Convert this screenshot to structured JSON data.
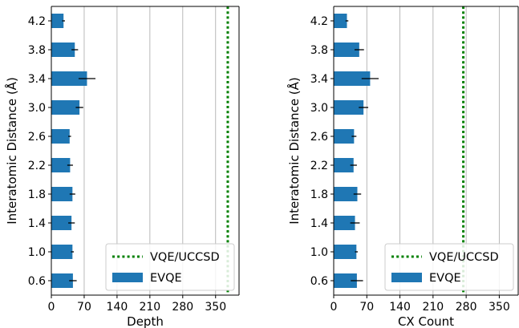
{
  "chart_data": [
    {
      "type": "bar",
      "orientation": "horizontal",
      "categories": [
        "0.6",
        "1.0",
        "1.4",
        "1.8",
        "2.2",
        "2.6",
        "3.0",
        "3.4",
        "3.8",
        "4.2"
      ],
      "series": [
        {
          "name": "EVQE",
          "values": [
            46,
            45,
            43,
            45,
            40,
            39,
            60,
            76,
            50,
            26
          ],
          "errors": [
            8,
            3,
            7,
            6,
            6,
            3,
            8,
            18,
            7,
            3
          ],
          "color": "#1f77b4"
        }
      ],
      "reference_line": {
        "name": "VQE/UCCSD",
        "value": 376,
        "color": "#008000",
        "style": "dotted"
      },
      "xlabel": "Depth",
      "ylabel": "Interatomic Distance (Å)",
      "xlim": [
        0,
        400
      ],
      "xticks": [
        "0",
        "70",
        "140",
        "210",
        "280",
        "350"
      ],
      "xtick_values": [
        0,
        70,
        140,
        210,
        280,
        350
      ],
      "grid": "x",
      "legend_position": "lower-right",
      "legend_order": [
        "VQE/UCCSD",
        "EVQE"
      ]
    },
    {
      "type": "bar",
      "orientation": "horizontal",
      "categories": [
        "0.6",
        "1.0",
        "1.4",
        "1.8",
        "2.2",
        "2.6",
        "3.0",
        "3.4",
        "3.8",
        "4.2"
      ],
      "series": [
        {
          "name": "EVQE",
          "values": [
            49,
            48,
            45,
            50,
            42,
            43,
            63,
            77,
            54,
            28
          ],
          "errors": [
            13,
            3,
            10,
            8,
            7,
            5,
            10,
            18,
            10,
            3
          ],
          "color": "#1f77b4"
        }
      ],
      "reference_line": {
        "name": "VQE/UCCSD",
        "value": 274,
        "color": "#008000",
        "style": "dotted"
      },
      "xlabel": "CX Count",
      "ylabel": "Interatomic Distance (Å)",
      "xlim": [
        0,
        390
      ],
      "xticks": [
        "0",
        "70",
        "140",
        "210",
        "280",
        "350"
      ],
      "xtick_values": [
        0,
        70,
        140,
        210,
        280,
        350
      ],
      "grid": "x",
      "legend_position": "lower-right",
      "legend_order": [
        "VQE/UCCSD",
        "EVQE"
      ]
    }
  ]
}
